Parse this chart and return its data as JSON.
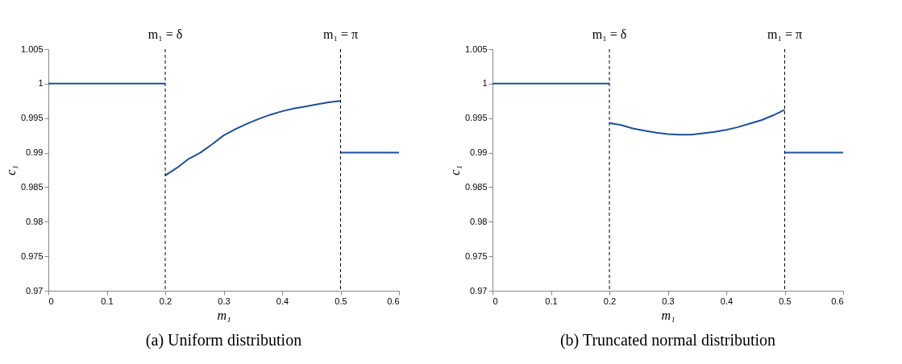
{
  "chart_data": [
    {
      "type": "line",
      "xlabel": "m₁",
      "ylabel": "c₁",
      "xlim": [
        0,
        0.6
      ],
      "ylim": [
        0.97,
        1.005
      ],
      "xticks": [
        0,
        0.1,
        0.2,
        0.3,
        0.4,
        0.5,
        0.6
      ],
      "yticks": [
        0.97,
        0.975,
        0.98,
        0.985,
        0.99,
        0.995,
        1,
        1.005
      ],
      "grid": false,
      "line_style": "solid",
      "series": [
        {
          "color": "#1f4e9a",
          "x": [
            0,
            0.2
          ],
          "values": [
            1,
            1
          ]
        },
        {
          "color": "#1f4e9a",
          "x": [
            0.2,
            0.22,
            0.24,
            0.26,
            0.28,
            0.3,
            0.32,
            0.34,
            0.36,
            0.38,
            0.4,
            0.42,
            0.44,
            0.46,
            0.48,
            0.5
          ],
          "values": [
            0.9867,
            0.9878,
            0.9891,
            0.99,
            0.9912,
            0.9925,
            0.9934,
            0.9942,
            0.9949,
            0.9955,
            0.996,
            0.9964,
            0.9967,
            0.997,
            0.9973,
            0.9975
          ]
        },
        {
          "color": "#1f4e9a",
          "x": [
            0.5,
            0.6
          ],
          "values": [
            0.99,
            0.99
          ]
        }
      ],
      "ref_lines": [
        {
          "axis": "x",
          "value": 0.2,
          "label": "m₁ = δ",
          "color": "#000000",
          "line_style": "dashed"
        },
        {
          "axis": "x",
          "value": 0.5,
          "label": "m₁ = π",
          "color": "#000000",
          "line_style": "dashed"
        }
      ],
      "annotations": [
        "(a) Uniform distribution"
      ]
    },
    {
      "type": "line",
      "xlabel": "m₁",
      "ylabel": "c₁",
      "xlim": [
        0,
        0.6
      ],
      "ylim": [
        0.97,
        1.005
      ],
      "xticks": [
        0,
        0.1,
        0.2,
        0.3,
        0.4,
        0.5,
        0.6
      ],
      "yticks": [
        0.97,
        0.975,
        0.98,
        0.985,
        0.99,
        0.995,
        1,
        1.005
      ],
      "grid": false,
      "line_style": "solid",
      "series": [
        {
          "color": "#1f4e9a",
          "x": [
            0,
            0.2
          ],
          "values": [
            1,
            1
          ]
        },
        {
          "color": "#1f4e9a",
          "x": [
            0.2,
            0.22,
            0.24,
            0.26,
            0.28,
            0.3,
            0.32,
            0.34,
            0.36,
            0.38,
            0.4,
            0.42,
            0.44,
            0.46,
            0.48,
            0.5
          ],
          "values": [
            0.9943,
            0.994,
            0.9935,
            0.9932,
            0.9929,
            0.9927,
            0.9926,
            0.9926,
            0.9928,
            0.993,
            0.9933,
            0.9937,
            0.9942,
            0.9947,
            0.9954,
            0.9962
          ]
        },
        {
          "color": "#1f4e9a",
          "x": [
            0.5,
            0.6
          ],
          "values": [
            0.99,
            0.99
          ]
        }
      ],
      "ref_lines": [
        {
          "axis": "x",
          "value": 0.2,
          "label": "m₁ = δ",
          "color": "#000000",
          "line_style": "dashed"
        },
        {
          "axis": "x",
          "value": 0.5,
          "label": "m₁ = π",
          "color": "#000000",
          "line_style": "dashed"
        }
      ],
      "annotations": [
        "(b) Truncated normal distribution"
      ]
    }
  ]
}
